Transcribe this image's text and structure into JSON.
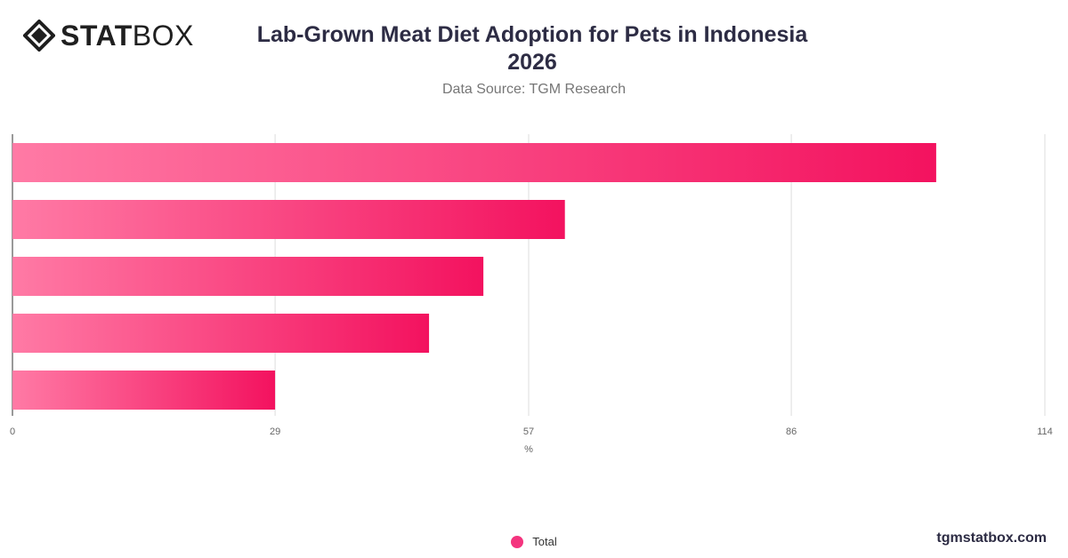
{
  "header": {
    "logo_bold": "STAT",
    "logo_light": "BOX",
    "title_line1": "Lab-Grown Meat Diet Adoption for Pets in Indonesia",
    "title_line2": "2026",
    "subtitle": "Data Source: TGM Research"
  },
  "chart_data": {
    "type": "bar",
    "orientation": "horizontal",
    "categories": [
      "",
      "",
      "",
      "",
      ""
    ],
    "series": [
      {
        "name": "Total",
        "values": [
          102,
          61,
          52,
          46,
          29
        ]
      }
    ],
    "xlabel": "%",
    "ylabel": "",
    "xlim": [
      0,
      114
    ],
    "x_ticks": [
      "0",
      "29",
      "57",
      "86",
      "114"
    ],
    "grid": "vertical",
    "legend_position": "bottom-center",
    "bar_gradient_start": "#ff7aa5",
    "bar_gradient_end": "#f3125f"
  },
  "legend": {
    "label": "Total",
    "color": "#f4347e"
  },
  "footer": {
    "url": "tgmstatbox.com"
  }
}
